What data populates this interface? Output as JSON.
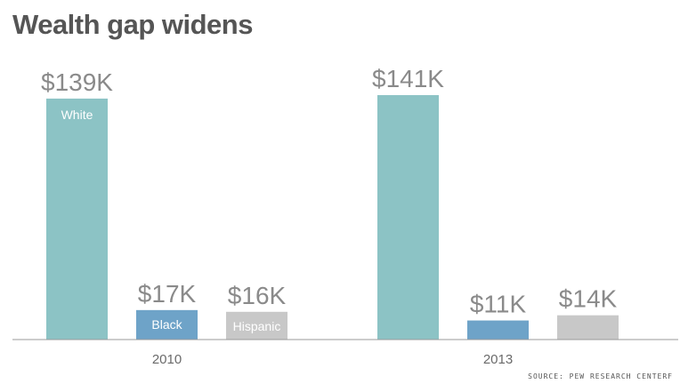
{
  "title": "Wealth gap widens",
  "source": "SOURCE: PEW RESEARCH CENTERF",
  "colors": {
    "White": "#8cc3c5",
    "Black": "#6ea3c8",
    "Hispanic": "#c8c8c8"
  },
  "chart_data": {
    "type": "bar",
    "title": "Wealth gap widens",
    "categories": [
      "2010",
      "2013"
    ],
    "series": [
      {
        "name": "White",
        "values": [
          139,
          141
        ],
        "value_labels": [
          "$139K",
          "$141K"
        ]
      },
      {
        "name": "Black",
        "values": [
          17,
          11
        ],
        "value_labels": [
          "$17K",
          "$11K"
        ]
      },
      {
        "name": "Hispanic",
        "values": [
          16,
          14
        ],
        "value_labels": [
          "$16K",
          "$14K"
        ]
      }
    ],
    "xlabel": "",
    "ylabel": "",
    "ylim": [
      0,
      141
    ],
    "grid": false,
    "legend": "labels inside bars (2010 group)"
  }
}
